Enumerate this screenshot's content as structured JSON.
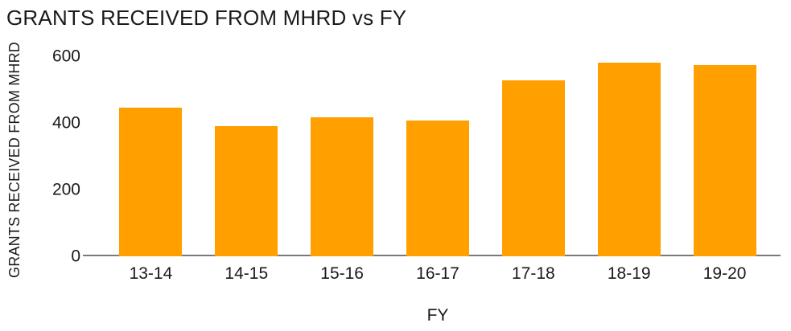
{
  "title": "GRANTS RECEIVED FROM MHRD vs FY",
  "colors": {
    "bar": "#FFA000",
    "axis_line": "#7A7A7A",
    "text": "#1A1A1A",
    "background": "#FFFFFF"
  },
  "chart_data": {
    "type": "bar",
    "title": "GRANTS RECEIVED FROM MHRD vs FY",
    "xlabel": "FY",
    "ylabel": "GRANTS RECEIVED FROM MHRD",
    "categories": [
      "13-14",
      "14-15",
      "15-16",
      "16-17",
      "17-18",
      "18-19",
      "19-20"
    ],
    "values": [
      445,
      390,
      418,
      408,
      527,
      582,
      574
    ],
    "ylim": [
      0,
      600
    ],
    "yticks": [
      0,
      200,
      400,
      600
    ],
    "grid": false,
    "legend": false,
    "bar_color": "#FFA000"
  }
}
